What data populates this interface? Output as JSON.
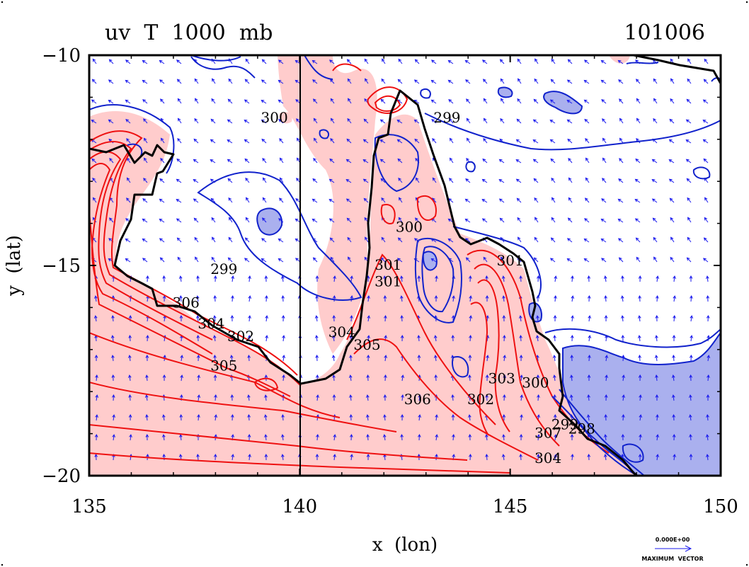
{
  "chart_data": {
    "type": "contour",
    "title_left": "uv  T  1000  mb",
    "title_right": "101006",
    "xlabel": "x  (lon)",
    "ylabel": "y  (lat)",
    "xlim": [
      135,
      150
    ],
    "ylim": [
      -20,
      -10
    ],
    "x_ticks": [
      135,
      140,
      145,
      150
    ],
    "y_ticks": [
      -10,
      -15,
      -20
    ],
    "x_tick_labels": [
      "135",
      "140",
      "145",
      "150"
    ],
    "y_tick_labels": [
      "−10",
      "−15",
      "−20"
    ],
    "vector_reference": {
      "value_label": "0.000E+00",
      "caption": "MAXIMUM  VECTOR"
    },
    "colors": {
      "warm_fill": "#ffcccc",
      "cold_fill": "#aab0ee",
      "warm_contour": "#ee1111",
      "cold_contour": "#1122cc",
      "coastline": "#000000",
      "vectors": "#1a1aee"
    },
    "contour_labels": [
      {
        "text": "300",
        "lon": 139.4,
        "lat": -11.6,
        "color": "warm"
      },
      {
        "text": "299",
        "lon": 143.5,
        "lat": -11.6,
        "color": "cold"
      },
      {
        "text": "299",
        "lon": 138.2,
        "lat": -15.2,
        "color": "cold"
      },
      {
        "text": "300",
        "lon": 142.6,
        "lat": -14.2,
        "color": "warm"
      },
      {
        "text": "301",
        "lon": 142.1,
        "lat": -15.1,
        "color": "warm"
      },
      {
        "text": "301",
        "lon": 142.1,
        "lat": -15.5,
        "color": "warm"
      },
      {
        "text": "301",
        "lon": 145.0,
        "lat": -15.0,
        "color": "warm"
      },
      {
        "text": "306",
        "lon": 137.3,
        "lat": -16.0,
        "color": "warm"
      },
      {
        "text": "304",
        "lon": 137.9,
        "lat": -16.5,
        "color": "warm"
      },
      {
        "text": "302",
        "lon": 138.6,
        "lat": -16.8,
        "color": "warm"
      },
      {
        "text": "305",
        "lon": 138.2,
        "lat": -17.5,
        "color": "warm"
      },
      {
        "text": "304",
        "lon": 141.0,
        "lat": -16.7,
        "color": "warm"
      },
      {
        "text": "305",
        "lon": 141.6,
        "lat": -17.0,
        "color": "warm"
      },
      {
        "text": "306",
        "lon": 142.8,
        "lat": -18.3,
        "color": "warm"
      },
      {
        "text": "302",
        "lon": 144.3,
        "lat": -18.3,
        "color": "warm"
      },
      {
        "text": "303",
        "lon": 144.8,
        "lat": -17.8,
        "color": "warm"
      },
      {
        "text": "300",
        "lon": 145.6,
        "lat": -17.9,
        "color": "warm"
      },
      {
        "text": "299",
        "lon": 146.3,
        "lat": -18.9,
        "color": "cold"
      },
      {
        "text": "298",
        "lon": 146.7,
        "lat": -19.0,
        "color": "cold"
      },
      {
        "text": "307",
        "lon": 145.9,
        "lat": -19.1,
        "color": "warm"
      },
      {
        "text": "304",
        "lon": 145.9,
        "lat": -19.7,
        "color": "warm"
      }
    ]
  }
}
